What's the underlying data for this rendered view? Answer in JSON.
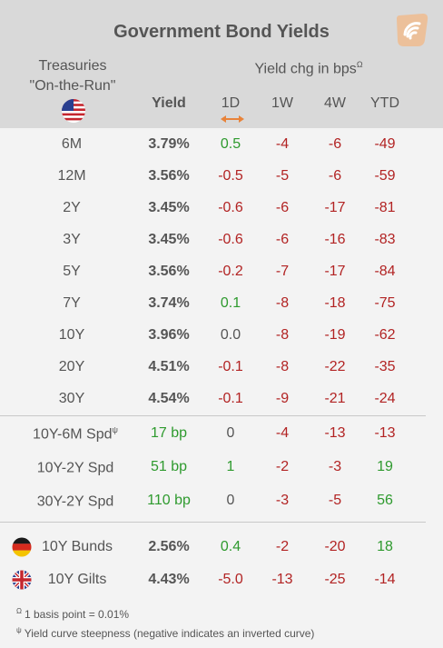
{
  "title": "Government Bond Yields",
  "header": {
    "treasuries_line1": "Treasuries",
    "treasuries_line2": "\"On-the-Run\"",
    "yield_change_label": "Yield chg in bps",
    "yield_change_mark": "Ω",
    "col_yield": "Yield",
    "col_1d": "1D",
    "col_1w": "1W",
    "col_4w": "4W",
    "col_ytd": "YTD"
  },
  "treasury_rows": [
    {
      "label": "6M",
      "yield": "3.79%",
      "d1": "0.5",
      "w1": "-4",
      "w4": "-6",
      "ytd": "-49"
    },
    {
      "label": "12M",
      "yield": "3.56%",
      "d1": "-0.5",
      "w1": "-5",
      "w4": "-6",
      "ytd": "-59"
    },
    {
      "label": "2Y",
      "yield": "3.45%",
      "d1": "-0.6",
      "w1": "-6",
      "w4": "-17",
      "ytd": "-81"
    },
    {
      "label": "3Y",
      "yield": "3.45%",
      "d1": "-0.6",
      "w1": "-6",
      "w4": "-16",
      "ytd": "-83"
    },
    {
      "label": "5Y",
      "yield": "3.56%",
      "d1": "-0.2",
      "w1": "-7",
      "w4": "-17",
      "ytd": "-84"
    },
    {
      "label": "7Y",
      "yield": "3.74%",
      "d1": "0.1",
      "w1": "-8",
      "w4": "-18",
      "ytd": "-75"
    },
    {
      "label": "10Y",
      "yield": "3.96%",
      "d1": "0.0",
      "w1": "-8",
      "w4": "-19",
      "ytd": "-62"
    },
    {
      "label": "20Y",
      "yield": "4.51%",
      "d1": "-0.1",
      "w1": "-8",
      "w4": "-22",
      "ytd": "-35"
    },
    {
      "label": "30Y",
      "yield": "4.54%",
      "d1": "-0.1",
      "w1": "-9",
      "w4": "-21",
      "ytd": "-24"
    }
  ],
  "spread_rows": [
    {
      "label": "10Y-6M Spd",
      "mark": "ψ",
      "yield": "17 bp",
      "d1": "0",
      "w1": "-4",
      "w4": "-13",
      "ytd": "-13"
    },
    {
      "label": "10Y-2Y Spd",
      "mark": "",
      "yield": "51 bp",
      "d1": "1",
      "w1": "-2",
      "w4": "-3",
      "ytd": "19"
    },
    {
      "label": "30Y-2Y Spd",
      "mark": "",
      "yield": "110 bp",
      "d1": "0",
      "w1": "-3",
      "w4": "-5",
      "ytd": "56"
    }
  ],
  "intl_rows": [
    {
      "label": "10Y Bunds",
      "flag": "germany-flag-icon",
      "yield": "2.56%",
      "d1": "0.4",
      "w1": "-2",
      "w4": "-20",
      "ytd": "18"
    },
    {
      "label": "10Y Gilts",
      "flag": "uk-flag-icon",
      "yield": "4.43%",
      "d1": "-5.0",
      "w1": "-13",
      "w4": "-25",
      "ytd": "-14"
    }
  ],
  "footnotes": [
    {
      "mark": "Ω",
      "text": "1 basis point = 0.01%"
    },
    {
      "mark": "ψ",
      "text": "Yield curve steepness (negative indicates an inverted curve)"
    }
  ],
  "colors": {
    "positive": "#2e9a2e",
    "negative": "#b22323",
    "neutral": "#555555",
    "accent": "#e8833a"
  }
}
